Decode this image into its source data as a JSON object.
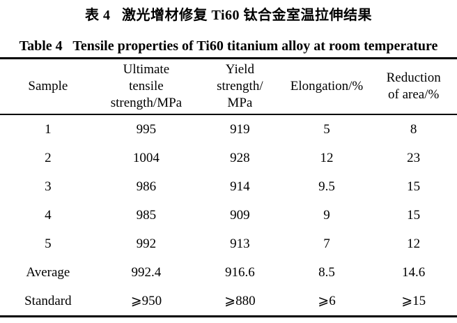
{
  "caption_zh": "表 4   激光增材修复 Ti60 钛合金室温拉伸结果",
  "caption_en": "Table 4   Tensile properties of Ti60 titanium alloy at room temperature",
  "chart_data": {
    "type": "table",
    "title": "Tensile properties of Ti60 titanium alloy at room temperature",
    "columns": [
      "Sample",
      "Ultimate\ntensile\nstrength/MPa",
      "Yield\nstrength/\nMPa",
      "Elongation/%",
      "Reduction\nof area/%"
    ],
    "rows": [
      [
        "1",
        "995",
        "919",
        "5",
        "8"
      ],
      [
        "2",
        "1004",
        "928",
        "12",
        "23"
      ],
      [
        "3",
        "986",
        "914",
        "9.5",
        "15"
      ],
      [
        "4",
        "985",
        "909",
        "9",
        "15"
      ],
      [
        "5",
        "992",
        "913",
        "7",
        "12"
      ],
      [
        "Average",
        "992.4",
        "916.6",
        "8.5",
        "14.6"
      ],
      [
        "Standard",
        "⩾950",
        "⩾880",
        "⩾6",
        "⩾15"
      ]
    ]
  }
}
